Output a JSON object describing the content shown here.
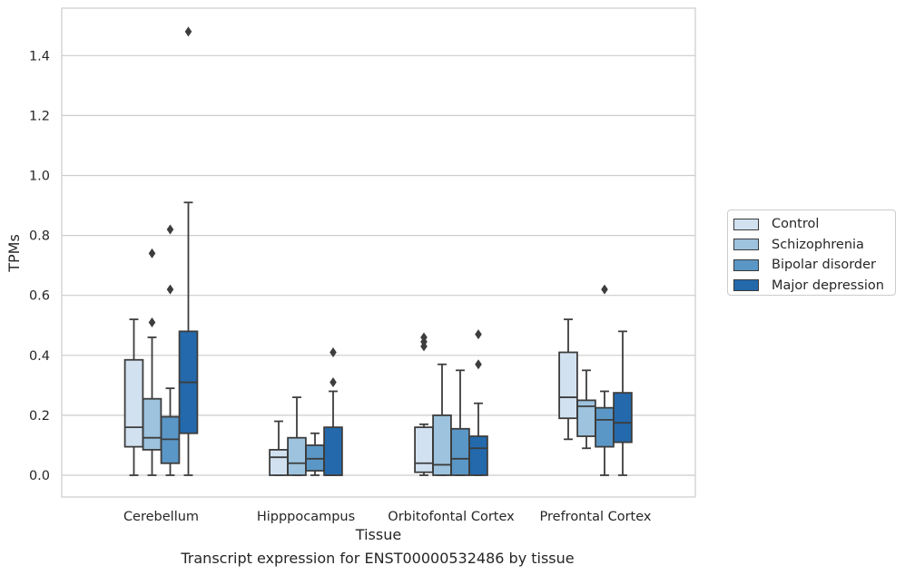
{
  "caption": "Transcript expression for ENST00000532486 by tissue",
  "chart_data": {
    "type": "box",
    "xlabel": "Tissue",
    "ylabel": "TPMs",
    "ylim": [
      -0.07,
      1.56
    ],
    "yticks": [
      0.0,
      0.2,
      0.4,
      0.6,
      0.8,
      1.0,
      1.2,
      1.4
    ],
    "ytick_labels": [
      "0.0",
      "0.2",
      "0.4",
      "0.6",
      "0.8",
      "1.0",
      "1.2",
      "1.4"
    ],
    "categories": [
      "Cerebellum",
      "Hipppocampus",
      "Orbitofontal Cortex",
      "Prefrontal Cortex"
    ],
    "grid": "horizontal",
    "legend_position": "right",
    "series": [
      {
        "name": "Control",
        "color": "#d1e1f0",
        "boxes": [
          {
            "whislo": 0.0,
            "q1": 0.095,
            "median": 0.16,
            "q3": 0.385,
            "whishi": 0.52,
            "fliers": []
          },
          {
            "whislo": 0.0,
            "q1": 0.0,
            "median": 0.06,
            "q3": 0.085,
            "whishi": 0.18,
            "fliers": []
          },
          {
            "whislo": 0.0,
            "q1": 0.01,
            "median": 0.04,
            "q3": 0.16,
            "whishi": 0.17,
            "fliers": [
              0.43,
              0.445,
              0.46
            ]
          },
          {
            "whislo": 0.12,
            "q1": 0.19,
            "median": 0.26,
            "q3": 0.41,
            "whishi": 0.52,
            "fliers": []
          }
        ]
      },
      {
        "name": "Schizophrenia",
        "color": "#9dc3de",
        "boxes": [
          {
            "whislo": 0.0,
            "q1": 0.085,
            "median": 0.125,
            "q3": 0.255,
            "whishi": 0.46,
            "fliers": [
              0.51,
              0.74
            ]
          },
          {
            "whislo": 0.0,
            "q1": 0.0,
            "median": 0.04,
            "q3": 0.125,
            "whishi": 0.26,
            "fliers": []
          },
          {
            "whislo": 0.0,
            "q1": 0.0,
            "median": 0.035,
            "q3": 0.2,
            "whishi": 0.37,
            "fliers": []
          },
          {
            "whislo": 0.09,
            "q1": 0.13,
            "median": 0.23,
            "q3": 0.25,
            "whishi": 0.35,
            "fliers": []
          }
        ]
      },
      {
        "name": "Bipolar disorder",
        "color": "#5a97c6",
        "boxes": [
          {
            "whislo": 0.0,
            "q1": 0.04,
            "median": 0.12,
            "q3": 0.195,
            "whishi": 0.29,
            "fliers": [
              0.62,
              0.82
            ]
          },
          {
            "whislo": 0.0,
            "q1": 0.015,
            "median": 0.055,
            "q3": 0.1,
            "whishi": 0.14,
            "fliers": []
          },
          {
            "whislo": 0.0,
            "q1": 0.0,
            "median": 0.055,
            "q3": 0.155,
            "whishi": 0.35,
            "fliers": []
          },
          {
            "whislo": 0.0,
            "q1": 0.095,
            "median": 0.185,
            "q3": 0.225,
            "whishi": 0.28,
            "fliers": [
              0.62
            ]
          }
        ]
      },
      {
        "name": "Major depression",
        "color": "#2369ac",
        "boxes": [
          {
            "whislo": 0.0,
            "q1": 0.14,
            "median": 0.31,
            "q3": 0.48,
            "whishi": 0.91,
            "fliers": [
              1.48
            ]
          },
          {
            "whislo": 0.0,
            "q1": 0.0,
            "median": 0.0,
            "q3": 0.16,
            "whishi": 0.28,
            "fliers": [
              0.31,
              0.41
            ]
          },
          {
            "whislo": 0.0,
            "q1": 0.0,
            "median": 0.09,
            "q3": 0.13,
            "whishi": 0.24,
            "fliers": [
              0.37,
              0.47
            ]
          },
          {
            "whislo": 0.0,
            "q1": 0.11,
            "median": 0.175,
            "q3": 0.275,
            "whishi": 0.48,
            "fliers": []
          }
        ]
      }
    ]
  }
}
